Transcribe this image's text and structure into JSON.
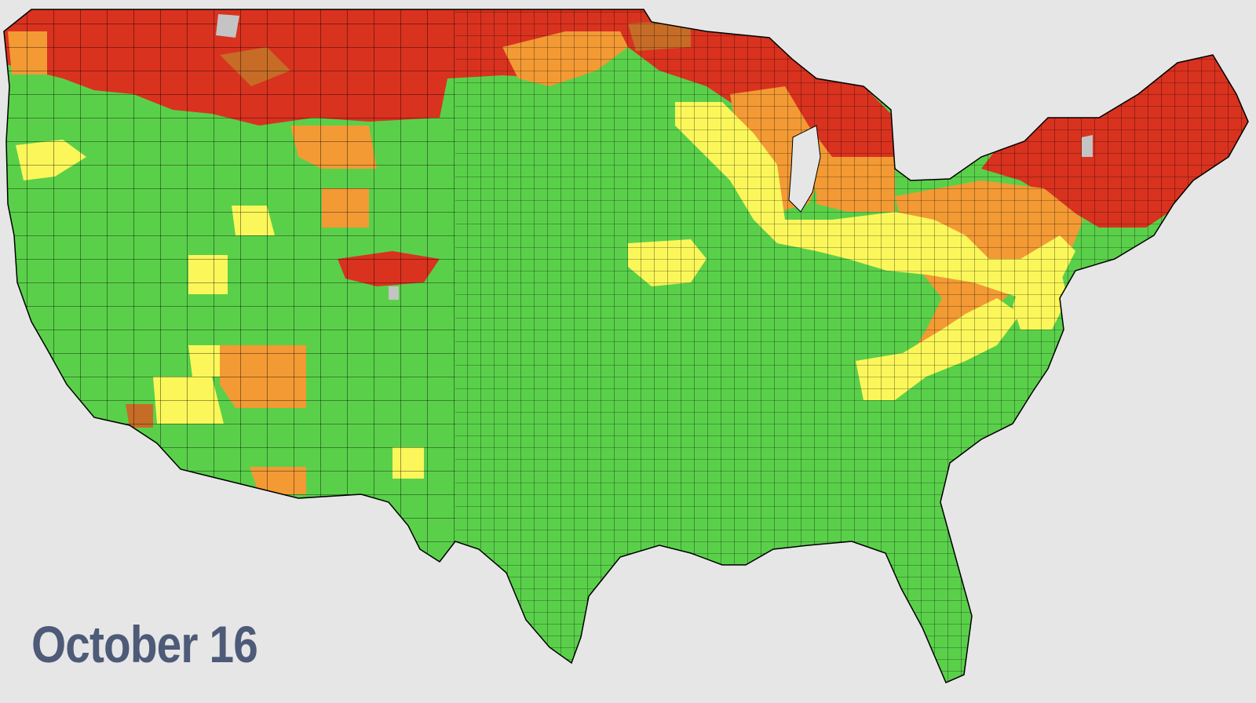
{
  "map": {
    "date_label": "October 16",
    "colors": {
      "green": "#5ad04a",
      "yellow": "#fbf75a",
      "orange": "#f39a34",
      "brown": "#c66c26",
      "red": "#d9321f",
      "gray": "#c4c4c4",
      "background": "#e6e6e6",
      "label": "#4d5a78",
      "border": "#000000"
    }
  }
}
